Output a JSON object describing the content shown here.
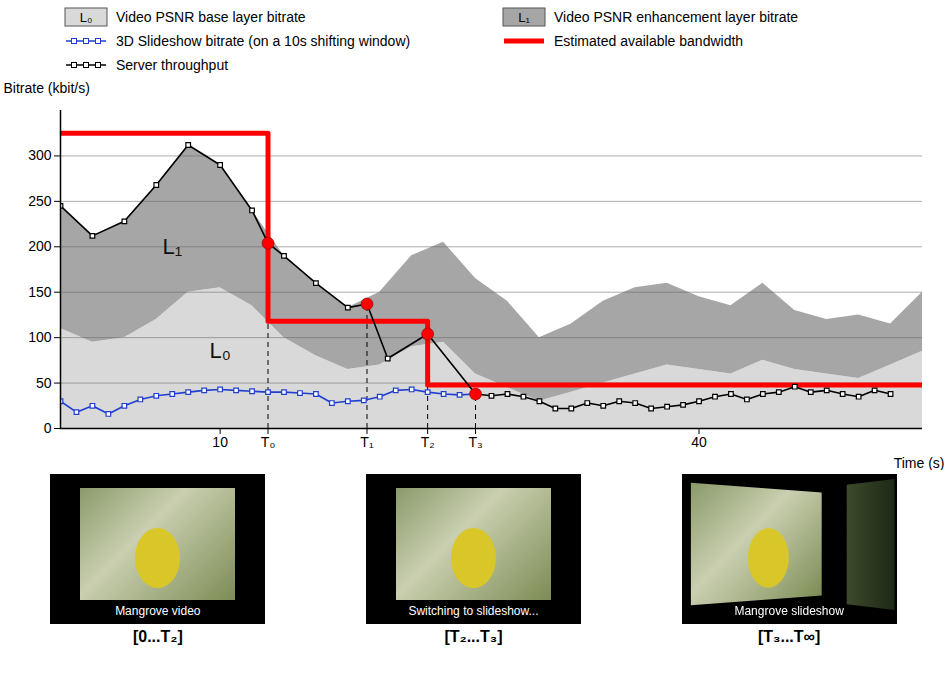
{
  "chart_data": {
    "type": "line",
    "y_label": "Bitrate (kbit/s)",
    "x_label": "Time (s)",
    "xlim": [
      0,
      54
    ],
    "ylim": [
      0,
      350
    ],
    "xticks": [
      10,
      {
        "value": 13,
        "label": "T₀"
      },
      {
        "value": 19.2,
        "label": "T₁"
      },
      {
        "value": 23,
        "label": "T₂"
      },
      {
        "value": 26,
        "label": "T₃"
      },
      40
    ],
    "yticks": [
      0,
      50,
      100,
      150,
      200,
      250,
      300
    ],
    "grid": true,
    "legend": "top",
    "stacked": true,
    "series": [
      {
        "name": "Video PSNR base layer bitrate",
        "symbol": "L₀",
        "type": "area",
        "color": "#d9d9d9",
        "x": [
          0,
          2,
          4,
          6,
          8,
          10,
          12,
          14,
          16,
          18,
          20,
          22,
          24,
          26,
          28,
          30,
          32,
          34,
          36,
          38,
          40,
          42,
          44,
          46,
          48,
          50,
          52,
          54
        ],
        "values": [
          110,
          95,
          100,
          120,
          150,
          155,
          135,
          100,
          80,
          65,
          70,
          90,
          95,
          60,
          45,
          30,
          40,
          50,
          60,
          70,
          65,
          60,
          75,
          65,
          60,
          55,
          70,
          85
        ]
      },
      {
        "name": "Video PSNR enhancement layer bitrate",
        "symbol": "L₁",
        "type": "area",
        "color": "#a6a6a6",
        "x": [
          0,
          2,
          4,
          6,
          8,
          10,
          12,
          14,
          16,
          18,
          20,
          22,
          24,
          26,
          28,
          30,
          32,
          34,
          36,
          38,
          40,
          42,
          44,
          46,
          48,
          50,
          52,
          54
        ],
        "values": [
          135,
          117,
          128,
          148,
          162,
          135,
          105,
          90,
          80,
          68,
          80,
          100,
          110,
          105,
          95,
          70,
          75,
          90,
          95,
          90,
          80,
          75,
          85,
          65,
          60,
          70,
          45,
          65
        ]
      },
      {
        "name": "3D Slideshow bitrate (on a 10s shifting window)",
        "type": "line",
        "color": "#1f3fd1",
        "marker": "square",
        "x": [
          0,
          1,
          2,
          3,
          4,
          5,
          6,
          7,
          8,
          9,
          10,
          11,
          12,
          13,
          14,
          15,
          16,
          17,
          18,
          19,
          20,
          21,
          22,
          23,
          24,
          25,
          26
        ],
        "values": [
          30,
          18,
          25,
          16,
          25,
          32,
          36,
          38,
          40,
          42,
          43,
          42,
          41,
          40,
          40,
          39,
          38,
          28,
          30,
          31,
          35,
          42,
          43,
          40,
          38,
          37,
          38
        ]
      },
      {
        "name": "Estimated available bandwidth",
        "type": "step",
        "color": "#ff0000",
        "x": [
          0,
          13,
          23,
          54
        ],
        "values": [
          325,
          118,
          48,
          48
        ]
      },
      {
        "name": "Server throughput",
        "type": "line",
        "color": "#000000",
        "marker": "square",
        "x": [
          0,
          2,
          4,
          6,
          8,
          10,
          12,
          13,
          14,
          16,
          18,
          19.2,
          20.5,
          23,
          26,
          27,
          28,
          29,
          30,
          31,
          32,
          33,
          34,
          35,
          36,
          37,
          38,
          39,
          40,
          41,
          42,
          43,
          44,
          45,
          46,
          47,
          48,
          49,
          50,
          51,
          52
        ],
        "values": [
          245,
          212,
          228,
          268,
          312,
          290,
          240,
          204,
          190,
          160,
          133,
          137,
          77,
          104,
          38,
          36,
          38,
          35,
          30,
          22,
          22,
          28,
          25,
          30,
          28,
          22,
          24,
          26,
          30,
          35,
          38,
          32,
          38,
          40,
          46,
          40,
          42,
          38,
          35,
          42,
          38
        ]
      }
    ],
    "event_points": {
      "color": "#ff0000",
      "x": [
        13,
        19.2,
        23,
        26
      ],
      "values": [
        204,
        137,
        104,
        38
      ]
    },
    "annotations": [
      {
        "text": "L₁",
        "x": 7,
        "y": 200
      },
      {
        "text": "L₀",
        "x": 10,
        "y": 85
      }
    ]
  },
  "panels": [
    {
      "caption": "Mangrove video",
      "label": "[0...T₂]"
    },
    {
      "caption": "Switching to slideshow...",
      "label": "[T₂...T₃]"
    },
    {
      "caption": "Mangrove slideshow",
      "label": "[T₃...T∞]"
    }
  ]
}
